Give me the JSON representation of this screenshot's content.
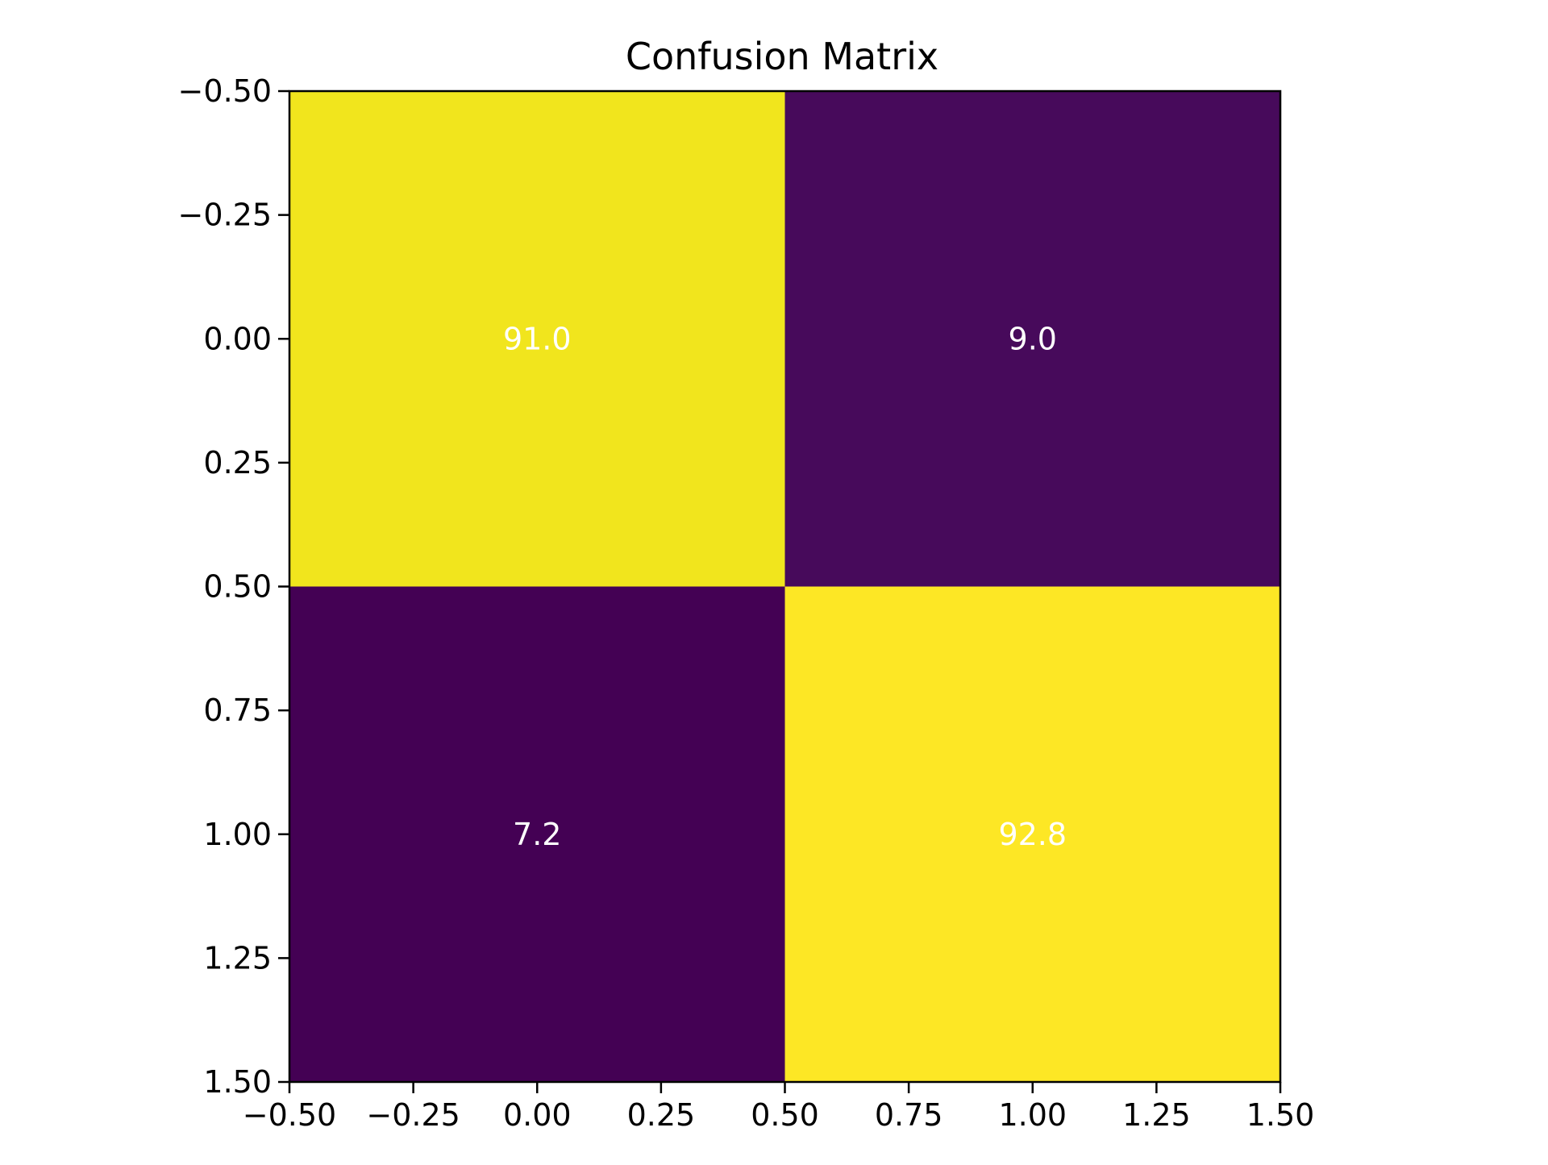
{
  "chart_data": {
    "type": "heatmap",
    "title": "Confusion Matrix",
    "xlabel": "",
    "ylabel": "",
    "matrix": [
      [
        91.0,
        9.0
      ],
      [
        7.2,
        92.8
      ]
    ],
    "cell_labels": [
      [
        "91.0",
        "9.0"
      ],
      [
        "7.2",
        "92.8"
      ]
    ],
    "xlim": [
      -0.5,
      1.5
    ],
    "ylim": [
      -0.5,
      1.5
    ],
    "y_inverted": true,
    "xticks": [
      -0.5,
      -0.25,
      0.0,
      0.25,
      0.5,
      0.75,
      1.0,
      1.25,
      1.5
    ],
    "yticks": [
      -0.5,
      -0.25,
      0.0,
      0.25,
      0.5,
      0.75,
      1.0,
      1.25,
      1.5
    ],
    "xtick_labels": [
      "−0.50",
      "−0.25",
      "0.00",
      "0.25",
      "0.50",
      "0.75",
      "1.00",
      "1.25",
      "1.50"
    ],
    "ytick_labels": [
      "−0.50",
      "−0.25",
      "0.00",
      "0.25",
      "0.50",
      "0.75",
      "1.00",
      "1.25",
      "1.50"
    ],
    "colormap": "viridis",
    "cell_colors": [
      [
        "#f1e51d",
        "#470a5b"
      ],
      [
        "#440154",
        "#fde725"
      ]
    ],
    "label_color": "#ffffff",
    "grid": false,
    "legend": "none"
  }
}
